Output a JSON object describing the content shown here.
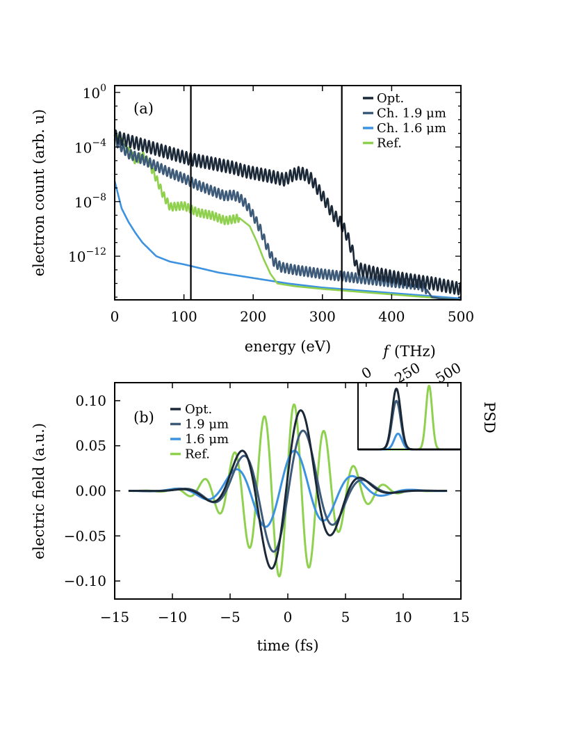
{
  "colors": {
    "opt": "#1b2838",
    "ch19": "#3d5a78",
    "ch16": "#3d92e0",
    "ref": "#8fd14f"
  },
  "chart_data": [
    {
      "id": "a",
      "type": "line",
      "panel_label": "(a)",
      "xlabel": "energy (eV)",
      "ylabel": "electron count (arb. u)",
      "xlim": [
        0,
        500
      ],
      "ylim_log10": [
        -15.2,
        0.5
      ],
      "y_scale": "log",
      "x_ticks": [
        "0",
        "100",
        "200",
        "300",
        "400",
        "500"
      ],
      "x_tick_values": [
        0,
        100,
        200,
        300,
        400,
        500
      ],
      "y_tick_values_log10": [
        0,
        -4,
        -8,
        -12
      ],
      "y_tick_labels": [
        {
          "base": "10",
          "exp": "0"
        },
        {
          "base": "10",
          "exp": "−4"
        },
        {
          "base": "10",
          "exp": "−8"
        },
        {
          "base": "10",
          "exp": "−12"
        }
      ],
      "vertical_lines_x": [
        110,
        328
      ],
      "legend": {
        "placement": "top-right",
        "entries": [
          "Opt.",
          "Ch. 1.9 μm",
          "Ch. 1.6 μm",
          "Ref."
        ]
      },
      "series": [
        {
          "name": "Opt.",
          "color_key": "opt",
          "oscillation": {
            "amplitude_log10": 0.45,
            "period_eV": 6,
            "until_eV": 500
          },
          "points": [
            [
              0,
              -3.2
            ],
            [
              10,
              -3.4
            ],
            [
              30,
              -3.7
            ],
            [
              50,
              -4.0
            ],
            [
              70,
              -4.3
            ],
            [
              90,
              -4.6
            ],
            [
              110,
              -4.9
            ],
            [
              130,
              -5.1
            ],
            [
              150,
              -5.3
            ],
            [
              170,
              -5.5
            ],
            [
              190,
              -5.8
            ],
            [
              210,
              -6.0
            ],
            [
              230,
              -6.2
            ],
            [
              245,
              -6.4
            ],
            [
              255,
              -6.1
            ],
            [
              265,
              -5.9
            ],
            [
              275,
              -6.0
            ],
            [
              285,
              -6.4
            ],
            [
              295,
              -7.2
            ],
            [
              305,
              -8.0
            ],
            [
              315,
              -8.9
            ],
            [
              328,
              -9.7
            ],
            [
              335,
              -10.4
            ],
            [
              345,
              -11.9
            ],
            [
              350,
              -12.9
            ],
            [
              380,
              -13.3
            ],
            [
              420,
              -13.7
            ],
            [
              460,
              -14.0
            ],
            [
              500,
              -14.4
            ]
          ]
        },
        {
          "name": "Ch. 1.9 μm",
          "color_key": "ch19",
          "oscillation": {
            "amplitude_log10": 0.35,
            "period_eV": 5.5,
            "until_eV": 450
          },
          "points": [
            [
              0,
              -3.5
            ],
            [
              20,
              -4.5
            ],
            [
              40,
              -4.9
            ],
            [
              60,
              -5.4
            ],
            [
              80,
              -5.9
            ],
            [
              100,
              -6.3
            ],
            [
              120,
              -6.8
            ],
            [
              140,
              -7.2
            ],
            [
              160,
              -7.6
            ],
            [
              170,
              -7.5
            ],
            [
              180,
              -7.7
            ],
            [
              190,
              -8.2
            ],
            [
              200,
              -9.0
            ],
            [
              210,
              -10.0
            ],
            [
              220,
              -11.3
            ],
            [
              230,
              -12.4
            ],
            [
              240,
              -12.8
            ],
            [
              260,
              -13.0
            ],
            [
              300,
              -13.3
            ],
            [
              350,
              -13.6
            ],
            [
              400,
              -13.9
            ],
            [
              440,
              -14.1
            ],
            [
              450,
              -14.4
            ],
            [
              458,
              -15.0
            ],
            [
              470,
              -15.1
            ],
            [
              500,
              -15.2
            ]
          ]
        },
        {
          "name": "Ch. 1.6 μm",
          "color_key": "ch16",
          "oscillation": {
            "amplitude_log10": 0.0,
            "period_eV": 5,
            "until_eV": 0
          },
          "points": [
            [
              0,
              -6.5
            ],
            [
              5,
              -7.5
            ],
            [
              10,
              -8.5
            ],
            [
              20,
              -9.5
            ],
            [
              30,
              -10.3
            ],
            [
              40,
              -11.0
            ],
            [
              50,
              -11.5
            ],
            [
              60,
              -12.0
            ],
            [
              80,
              -12.4
            ],
            [
              100,
              -12.6
            ],
            [
              150,
              -13.2
            ],
            [
              200,
              -13.6
            ],
            [
              250,
              -14.0
            ],
            [
              300,
              -14.3
            ],
            [
              350,
              -14.5
            ],
            [
              400,
              -14.7
            ],
            [
              450,
              -14.9
            ],
            [
              500,
              -15.1
            ]
          ]
        },
        {
          "name": "Ref.",
          "color_key": "ref",
          "oscillation": {
            "amplitude_log10": 0.3,
            "period_eV": 5,
            "until_eV": 180
          },
          "points": [
            [
              0,
              -3.0
            ],
            [
              10,
              -3.6
            ],
            [
              20,
              -4.2
            ],
            [
              30,
              -5.0
            ],
            [
              40,
              -4.6
            ],
            [
              50,
              -5.2
            ],
            [
              60,
              -6.3
            ],
            [
              70,
              -7.5
            ],
            [
              80,
              -8.4
            ],
            [
              100,
              -8.3
            ],
            [
              120,
              -8.8
            ],
            [
              140,
              -9.0
            ],
            [
              160,
              -9.4
            ],
            [
              180,
              -9.2
            ],
            [
              195,
              -9.8
            ],
            [
              205,
              -10.9
            ],
            [
              215,
              -12.2
            ],
            [
              225,
              -13.3
            ],
            [
              235,
              -14.0
            ],
            [
              260,
              -14.2
            ],
            [
              300,
              -14.4
            ],
            [
              350,
              -14.6
            ],
            [
              400,
              -14.8
            ],
            [
              450,
              -15.0
            ],
            [
              500,
              -15.2
            ]
          ]
        }
      ]
    },
    {
      "id": "b",
      "type": "line",
      "panel_label": "(b)",
      "xlabel": "time (fs)",
      "ylabel": "electric field (a.u.)",
      "xlim": [
        -15,
        15
      ],
      "ylim": [
        -0.12,
        0.12
      ],
      "x_ticks": [
        "−15",
        "−10",
        "−5",
        "0",
        "5",
        "10",
        "15"
      ],
      "x_tick_values": [
        -15,
        -10,
        -5,
        0,
        5,
        10,
        15
      ],
      "y_ticks": [
        "0.10",
        "0.05",
        "0.00",
        "−0.05",
        "−0.10"
      ],
      "y_tick_values": [
        0.1,
        0.05,
        0.0,
        -0.05,
        -0.1
      ],
      "t_range": [
        -13.8,
        13.8
      ],
      "legend": {
        "placement": "top-left",
        "entries": [
          "Opt.",
          "1.9 μm",
          "1.6 μm",
          "Ref."
        ]
      },
      "series": [
        {
          "name": "Opt.",
          "color_key": "opt",
          "amplitude": 0.095,
          "sigma_fs": 3.3,
          "period_fs": 5.4,
          "phase_t0_fs": 1.2,
          "sign": 1
        },
        {
          "name": "1.9 μm",
          "color_key": "ch19",
          "amplitude": 0.072,
          "sigma_fs": 3.5,
          "period_fs": 5.4,
          "phase_t0_fs": 1.4,
          "sign": 1
        },
        {
          "name": "1.6 μm",
          "color_key": "ch16",
          "amplitude": 0.045,
          "sigma_fs": 4.0,
          "period_fs": 5.2,
          "phase_t0_fs": 0.6,
          "sign": 1
        },
        {
          "name": "Ref.",
          "color_key": "ref",
          "amplitude": 0.097,
          "sigma_fs": 3.6,
          "period_fs": 2.6,
          "phase_t0_fs": 0.55,
          "sign": 1
        }
      ]
    },
    {
      "id": "b-inset",
      "type": "line",
      "xlabel": "f (THz)",
      "xlabel_italic_part": "f",
      "xlabel_rest": "(THz)",
      "ylabel": "PSD",
      "xlim": [
        -50,
        580
      ],
      "ylim": [
        0,
        1.1
      ],
      "x_ticks": [
        "0",
        "250",
        "500"
      ],
      "x_tick_values": [
        0,
        250,
        500
      ],
      "series": [
        {
          "name": "Opt.",
          "color_key": "opt",
          "peak": 1.0,
          "center_THz": 185,
          "width_THz": 42
        },
        {
          "name": "1.9 μm",
          "color_key": "ch19",
          "peak": 0.8,
          "center_THz": 185,
          "width_THz": 42
        },
        {
          "name": "1.6 μm",
          "color_key": "ch16",
          "peak": 0.26,
          "center_THz": 195,
          "width_THz": 38
        },
        {
          "name": "Ref.",
          "color_key": "ref",
          "peak": 1.05,
          "center_THz": 385,
          "width_THz": 30
        }
      ]
    }
  ]
}
